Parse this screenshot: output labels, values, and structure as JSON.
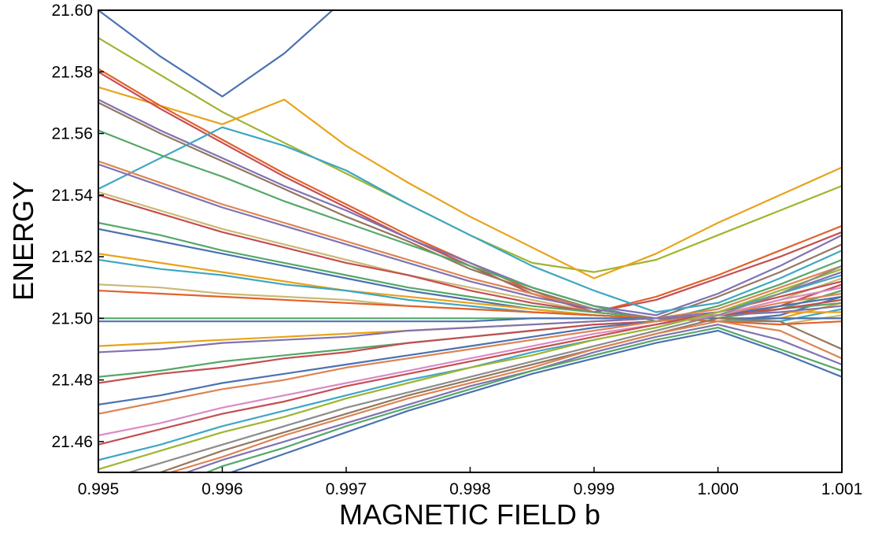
{
  "chart_data": {
    "type": "line",
    "title": "",
    "xlabel": "MAGNETIC FIELD b",
    "ylabel": "ENERGY",
    "xlim": [
      0.995,
      1.001
    ],
    "ylim": [
      21.45,
      21.6
    ],
    "xticks": [
      0.995,
      0.996,
      0.997,
      0.998,
      0.999,
      1.0,
      1.001
    ],
    "xtick_labels": [
      "0.995",
      "0.996",
      "0.997",
      "0.998",
      "0.999",
      "1.000",
      "1.001"
    ],
    "yticks": [
      21.46,
      21.48,
      21.5,
      21.52,
      21.54,
      21.56,
      21.58,
      21.6
    ],
    "ytick_labels": [
      "21.46",
      "21.48",
      "21.50",
      "21.52",
      "21.54",
      "21.56",
      "21.58",
      "21.60"
    ],
    "grid": false,
    "legend": "none",
    "palette": [
      "#4c72b0",
      "#dd8452",
      "#55a868",
      "#c44e52",
      "#8172b2",
      "#937860",
      "#da8bc3",
      "#8c8c8c",
      "#ccb974",
      "#64b5cd",
      "#e8a31a",
      "#9fb52f",
      "#e2622b",
      "#3fa6c4"
    ],
    "x": [
      0.995,
      0.9955,
      0.996,
      0.9965,
      0.997,
      0.9975,
      0.998,
      0.9985,
      0.999,
      0.9995,
      1.0,
      1.0005,
      1.001
    ],
    "series": [
      {
        "color": "#4c72b0",
        "values": [
          21.6,
          21.585,
          21.572,
          21.586,
          21.604,
          null,
          null,
          null,
          null,
          null,
          null,
          null,
          null
        ]
      },
      {
        "color": "#9fb52f",
        "values": [
          21.591,
          21.579,
          21.567,
          21.557,
          21.547,
          21.537,
          21.527,
          21.518,
          21.515,
          21.519,
          21.527,
          21.535,
          21.543
        ]
      },
      {
        "color": "#e8a31a",
        "values": [
          21.575,
          21.569,
          21.563,
          21.571,
          21.556,
          21.544,
          21.533,
          21.523,
          21.513,
          21.521,
          21.531,
          21.54,
          21.549
        ]
      },
      {
        "color": "#e2622b",
        "values": [
          21.581,
          21.569,
          21.558,
          21.547,
          21.537,
          21.527,
          21.518,
          21.509,
          21.502,
          21.507,
          21.514,
          21.522,
          21.53
        ]
      },
      {
        "color": "#c44e52",
        "values": [
          21.58,
          21.568,
          21.557,
          21.546,
          21.536,
          21.526,
          21.517,
          21.508,
          21.502,
          21.506,
          21.513,
          21.52,
          21.528
        ]
      },
      {
        "color": "#8172b2",
        "values": [
          21.571,
          21.561,
          21.552,
          21.543,
          21.535,
          21.526,
          21.518,
          21.51,
          21.504,
          21.501,
          21.508,
          21.517,
          21.527
        ]
      },
      {
        "color": "#937860",
        "values": [
          21.57,
          21.56,
          21.551,
          21.542,
          21.533,
          21.525,
          21.516,
          21.509,
          21.503,
          21.5,
          21.507,
          21.515,
          21.524
        ]
      },
      {
        "color": "#3fa6c4",
        "values": [
          21.542,
          21.552,
          21.562,
          21.556,
          21.548,
          21.537,
          21.527,
          21.517,
          21.509,
          21.502,
          21.505,
          21.513,
          21.522
        ]
      },
      {
        "color": "#55a868",
        "values": [
          21.561,
          21.553,
          21.546,
          21.538,
          21.531,
          21.524,
          21.517,
          21.51,
          21.504,
          21.499,
          21.504,
          21.511,
          21.519
        ]
      },
      {
        "color": "#dd8452",
        "values": [
          21.551,
          21.544,
          21.537,
          21.531,
          21.525,
          21.519,
          21.513,
          21.508,
          21.503,
          21.5,
          21.503,
          21.51,
          21.517
        ]
      },
      {
        "color": "#8172b2",
        "values": [
          21.55,
          21.543,
          21.536,
          21.53,
          21.524,
          21.518,
          21.512,
          21.507,
          21.503,
          21.5,
          21.502,
          21.508,
          21.515
        ]
      },
      {
        "color": "#ccb974",
        "values": [
          21.541,
          21.535,
          21.529,
          21.524,
          21.519,
          21.514,
          21.51,
          21.506,
          21.502,
          21.5,
          21.501,
          21.506,
          21.513
        ]
      },
      {
        "color": "#c44e52",
        "values": [
          21.54,
          21.534,
          21.528,
          21.523,
          21.518,
          21.514,
          21.509,
          21.505,
          21.502,
          21.5,
          21.5,
          21.504,
          21.511
        ]
      },
      {
        "color": "#55a868",
        "values": [
          21.531,
          21.527,
          21.522,
          21.518,
          21.514,
          21.51,
          21.507,
          21.504,
          21.502,
          21.5,
          21.5,
          21.503,
          21.509
        ]
      },
      {
        "color": "#4c72b0",
        "values": [
          21.529,
          21.525,
          21.521,
          21.517,
          21.513,
          21.509,
          21.506,
          21.503,
          21.501,
          21.5,
          21.499,
          21.501,
          21.507
        ]
      },
      {
        "color": "#e8a31a",
        "values": [
          21.521,
          21.518,
          21.515,
          21.512,
          21.509,
          21.507,
          21.505,
          21.503,
          21.501,
          21.5,
          21.499,
          21.5,
          21.505
        ]
      },
      {
        "color": "#3fa6c4",
        "values": [
          21.519,
          21.516,
          21.514,
          21.511,
          21.509,
          21.506,
          21.504,
          21.502,
          21.501,
          21.5,
          21.499,
          21.499,
          21.503
        ]
      },
      {
        "color": "#ccb974",
        "values": [
          21.511,
          21.51,
          21.508,
          21.507,
          21.506,
          21.504,
          21.503,
          21.502,
          21.501,
          21.5,
          21.499,
          21.498,
          21.501
        ]
      },
      {
        "color": "#e2622b",
        "values": [
          21.509,
          21.508,
          21.507,
          21.506,
          21.505,
          21.504,
          21.503,
          21.502,
          21.501,
          21.5,
          21.499,
          21.498,
          21.499
        ]
      },
      {
        "color": "#55a868",
        "values": [
          21.5,
          21.5,
          21.5,
          21.5,
          21.5,
          21.5,
          21.5,
          21.5,
          21.5,
          21.5,
          21.5,
          21.5,
          21.5
        ]
      },
      {
        "color": "#4c72b0",
        "values": [
          21.499,
          21.499,
          21.499,
          21.499,
          21.499,
          21.499,
          21.499,
          21.5,
          21.5,
          21.5,
          21.5,
          21.5,
          21.5
        ]
      },
      {
        "color": "#e8a31a",
        "values": [
          21.491,
          21.492,
          21.493,
          21.494,
          21.495,
          21.496,
          21.497,
          21.498,
          21.499,
          21.5,
          21.501,
          21.502,
          21.502
        ]
      },
      {
        "color": "#8172b2",
        "values": [
          21.489,
          21.49,
          21.492,
          21.493,
          21.494,
          21.496,
          21.497,
          21.498,
          21.499,
          21.5,
          21.501,
          21.502,
          21.504
        ]
      },
      {
        "color": "#55a868",
        "values": [
          21.481,
          21.483,
          21.486,
          21.488,
          21.49,
          21.492,
          21.494,
          21.496,
          21.498,
          21.499,
          21.501,
          21.503,
          21.505
        ]
      },
      {
        "color": "#c44e52",
        "values": [
          21.479,
          21.482,
          21.484,
          21.487,
          21.489,
          21.492,
          21.494,
          21.496,
          21.498,
          21.499,
          21.501,
          21.503,
          21.506
        ]
      },
      {
        "color": "#4c72b0",
        "values": [
          21.472,
          21.475,
          21.479,
          21.482,
          21.485,
          21.488,
          21.491,
          21.494,
          21.497,
          21.499,
          21.501,
          21.504,
          21.507
        ]
      },
      {
        "color": "#dd8452",
        "values": [
          21.469,
          21.473,
          21.477,
          21.48,
          21.484,
          21.487,
          21.49,
          21.493,
          21.496,
          21.499,
          21.501,
          21.505,
          21.508
        ]
      },
      {
        "color": "#da8bc3",
        "values": [
          21.462,
          21.466,
          21.471,
          21.475,
          21.479,
          21.483,
          21.487,
          21.491,
          21.495,
          21.498,
          21.501,
          21.506,
          21.51
        ]
      },
      {
        "color": "#c44e52",
        "values": [
          21.459,
          21.464,
          21.469,
          21.473,
          21.478,
          21.482,
          21.486,
          21.49,
          21.494,
          21.498,
          21.502,
          21.507,
          21.512
        ]
      },
      {
        "color": "#3fa6c4",
        "values": [
          21.454,
          21.459,
          21.465,
          21.47,
          21.475,
          21.48,
          21.484,
          21.489,
          21.493,
          21.497,
          21.502,
          21.508,
          21.514
        ]
      },
      {
        "color": "#9fb52f",
        "values": [
          21.451,
          21.457,
          21.463,
          21.468,
          21.474,
          21.479,
          21.484,
          21.488,
          21.493,
          21.497,
          21.502,
          21.509,
          21.516
        ]
      },
      {
        "color": "#8c8c8c",
        "values": [
          21.447,
          21.453,
          21.459,
          21.465,
          21.471,
          21.476,
          21.481,
          21.486,
          21.491,
          21.496,
          21.501,
          21.508,
          21.517
        ]
      },
      {
        "color": "#937860",
        "values": [
          21.444,
          21.45,
          21.457,
          21.463,
          21.469,
          21.475,
          21.48,
          21.485,
          21.49,
          21.495,
          21.5,
          21.499,
          21.49
        ]
      },
      {
        "color": "#dd8452",
        "values": [
          21.442,
          21.449,
          21.455,
          21.462,
          21.468,
          21.474,
          21.479,
          21.484,
          21.49,
          21.495,
          21.499,
          21.496,
          21.487
        ]
      },
      {
        "color": "#8172b2",
        "values": [
          21.44,
          21.447,
          21.454,
          21.46,
          21.466,
          21.472,
          21.478,
          21.483,
          21.489,
          21.494,
          21.498,
          21.493,
          21.485
        ]
      },
      {
        "color": "#55a868",
        "values": [
          21.437,
          21.444,
          21.452,
          21.458,
          21.465,
          21.471,
          21.477,
          21.483,
          21.488,
          21.493,
          21.497,
          21.49,
          21.483
        ]
      },
      {
        "color": "#4c72b0",
        "values": [
          21.434,
          21.442,
          21.449,
          21.456,
          21.463,
          21.47,
          21.476,
          21.482,
          21.487,
          21.492,
          21.496,
          21.489,
          21.481
        ]
      }
    ]
  }
}
